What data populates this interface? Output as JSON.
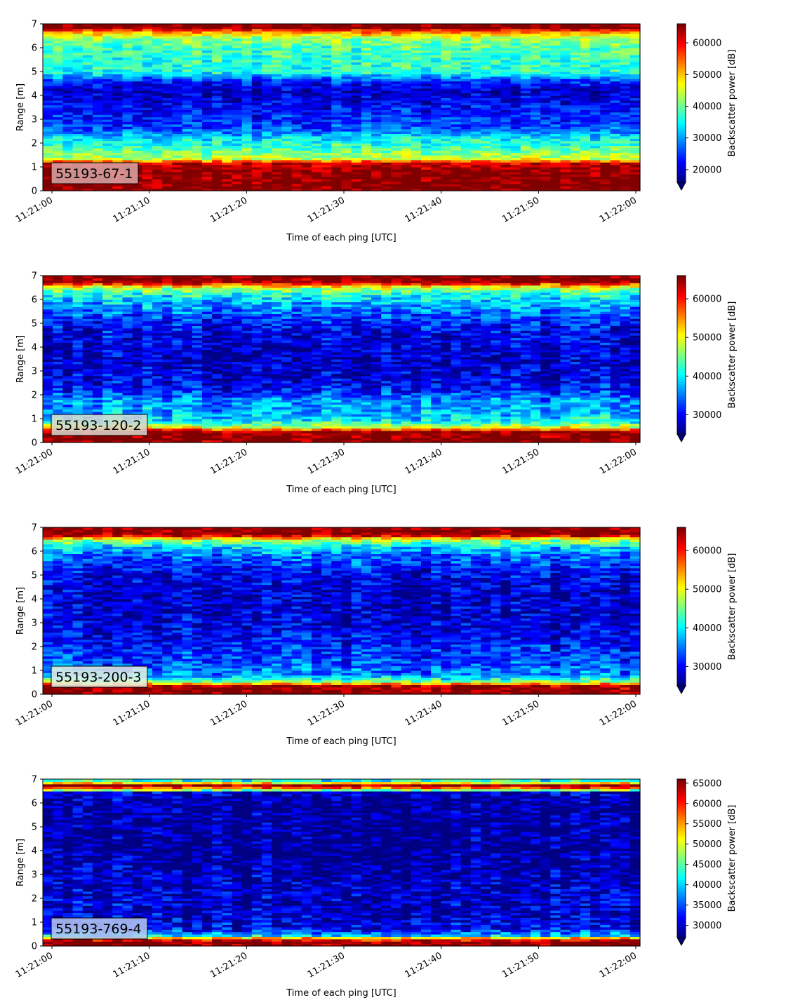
{
  "chart_data": [
    {
      "type": "heatmap",
      "label": "55193-67-1",
      "xlabel": "Time of each ping [UTC]",
      "ylabel": "Range [m]",
      "x_ticks": [
        "11:21:00",
        "11:21:10",
        "11:21:20",
        "11:21:30",
        "11:21:40",
        "11:21:50",
        "11:22:00"
      ],
      "y_ticks": [
        "0",
        "1",
        "2",
        "3",
        "4",
        "5",
        "6",
        "7"
      ],
      "ylim": [
        0,
        7
      ],
      "colorbar_label": "Backscatter power [dB]",
      "colorbar_ticks": [
        "20000",
        "30000",
        "40000",
        "50000",
        "60000"
      ],
      "colorbar_range": [
        16000,
        66000
      ],
      "colormap": "jet",
      "profile": [
        {
          "range": 0.15,
          "value": 66000
        },
        {
          "range": 0.5,
          "value": 66000
        },
        {
          "range": 0.9,
          "value": 65000
        },
        {
          "range": 1.15,
          "value": 62000
        },
        {
          "range": 1.35,
          "value": 45000
        },
        {
          "range": 1.8,
          "value": 38000
        },
        {
          "range": 2.2,
          "value": 34000
        },
        {
          "range": 2.6,
          "value": 26000
        },
        {
          "range": 3.0,
          "value": 24000
        },
        {
          "range": 3.4,
          "value": 23000
        },
        {
          "range": 3.8,
          "value": 21000
        },
        {
          "range": 4.2,
          "value": 19000
        },
        {
          "range": 4.6,
          "value": 24000
        },
        {
          "range": 5.0,
          "value": 36000
        },
        {
          "range": 5.5,
          "value": 37000
        },
        {
          "range": 6.0,
          "value": 38000
        },
        {
          "range": 6.4,
          "value": 42000
        },
        {
          "range": 6.65,
          "value": 52000
        },
        {
          "range": 6.85,
          "value": 66000
        },
        {
          "range": 7.0,
          "value": 66000
        }
      ],
      "label_bg": "#d9a8a8"
    },
    {
      "type": "heatmap",
      "label": "55193-120-2",
      "xlabel": "Time of each ping [UTC]",
      "ylabel": "Range [m]",
      "x_ticks": [
        "11:21:00",
        "11:21:10",
        "11:21:20",
        "11:21:30",
        "11:21:40",
        "11:21:50",
        "11:22:00"
      ],
      "y_ticks": [
        "0",
        "1",
        "2",
        "3",
        "4",
        "5",
        "6",
        "7"
      ],
      "ylim": [
        0,
        7
      ],
      "colorbar_label": "Backscatter power [dB]",
      "colorbar_ticks": [
        "30000",
        "40000",
        "50000",
        "60000"
      ],
      "colorbar_range": [
        25000,
        66000
      ],
      "colormap": "jet",
      "profile": [
        {
          "range": 0.15,
          "value": 66000
        },
        {
          "range": 0.45,
          "value": 66000
        },
        {
          "range": 0.65,
          "value": 50000
        },
        {
          "range": 0.9,
          "value": 40000
        },
        {
          "range": 1.3,
          "value": 37000
        },
        {
          "range": 1.8,
          "value": 36000
        },
        {
          "range": 2.3,
          "value": 30000
        },
        {
          "range": 2.8,
          "value": 29000
        },
        {
          "range": 3.3,
          "value": 28000
        },
        {
          "range": 3.8,
          "value": 28000
        },
        {
          "range": 4.3,
          "value": 29000
        },
        {
          "range": 4.8,
          "value": 30000
        },
        {
          "range": 5.3,
          "value": 33000
        },
        {
          "range": 5.8,
          "value": 37000
        },
        {
          "range": 6.2,
          "value": 41000
        },
        {
          "range": 6.5,
          "value": 48000
        },
        {
          "range": 6.75,
          "value": 66000
        },
        {
          "range": 7.0,
          "value": 66000
        }
      ],
      "label_bg": "#d8d8d0"
    },
    {
      "type": "heatmap",
      "label": "55193-200-3",
      "xlabel": "Time of each ping [UTC]",
      "ylabel": "Range [m]",
      "x_ticks": [
        "11:21:00",
        "11:21:10",
        "11:21:20",
        "11:21:30",
        "11:21:40",
        "11:21:50",
        "11:22:00"
      ],
      "y_ticks": [
        "0",
        "1",
        "2",
        "3",
        "4",
        "5",
        "6",
        "7"
      ],
      "ylim": [
        0,
        7
      ],
      "colorbar_label": "Backscatter power [dB]",
      "colorbar_ticks": [
        "30000",
        "40000",
        "50000",
        "60000"
      ],
      "colorbar_range": [
        25000,
        66000
      ],
      "colormap": "jet",
      "profile": [
        {
          "range": 0.15,
          "value": 66000
        },
        {
          "range": 0.35,
          "value": 64000
        },
        {
          "range": 0.55,
          "value": 45000
        },
        {
          "range": 0.8,
          "value": 36000
        },
        {
          "range": 1.3,
          "value": 33000
        },
        {
          "range": 1.8,
          "value": 32000
        },
        {
          "range": 2.3,
          "value": 30000
        },
        {
          "range": 2.8,
          "value": 29000
        },
        {
          "range": 3.3,
          "value": 28500
        },
        {
          "range": 3.8,
          "value": 28000
        },
        {
          "range": 4.3,
          "value": 28000
        },
        {
          "range": 4.8,
          "value": 29000
        },
        {
          "range": 5.3,
          "value": 31000
        },
        {
          "range": 5.8,
          "value": 34000
        },
        {
          "range": 6.2,
          "value": 39000
        },
        {
          "range": 6.5,
          "value": 48000
        },
        {
          "range": 6.7,
          "value": 66000
        },
        {
          "range": 7.0,
          "value": 66000
        }
      ],
      "label_bg": "#e6f0e4"
    },
    {
      "type": "heatmap",
      "label": "55193-769-4",
      "xlabel": "Time of each ping [UTC]",
      "ylabel": "Range [m]",
      "x_ticks": [
        "11:21:00",
        "11:21:10",
        "11:21:20",
        "11:21:30",
        "11:21:40",
        "11:21:50",
        "11:22:00"
      ],
      "y_ticks": [
        "0",
        "1",
        "2",
        "3",
        "4",
        "5",
        "6",
        "7"
      ],
      "ylim": [
        0,
        7
      ],
      "colorbar_label": "Backscatter power [dB]",
      "colorbar_ticks": [
        "30000",
        "35000",
        "40000",
        "45000",
        "50000",
        "55000",
        "60000",
        "65000"
      ],
      "colorbar_range": [
        27000,
        66000
      ],
      "colormap": "jet",
      "profile": [
        {
          "range": 0.15,
          "value": 66000
        },
        {
          "range": 0.3,
          "value": 60000
        },
        {
          "range": 0.45,
          "value": 40000
        },
        {
          "range": 0.7,
          "value": 32000
        },
        {
          "range": 1.2,
          "value": 30000
        },
        {
          "range": 2.0,
          "value": 30000
        },
        {
          "range": 3.0,
          "value": 29000
        },
        {
          "range": 4.0,
          "value": 28000
        },
        {
          "range": 5.0,
          "value": 28000
        },
        {
          "range": 6.0,
          "value": 28000
        },
        {
          "range": 6.45,
          "value": 30000
        },
        {
          "range": 6.6,
          "value": 55000
        },
        {
          "range": 6.75,
          "value": 65000
        },
        {
          "range": 6.9,
          "value": 45000
        },
        {
          "range": 7.0,
          "value": 40000
        }
      ],
      "label_bg": "#b8c8ee"
    }
  ]
}
